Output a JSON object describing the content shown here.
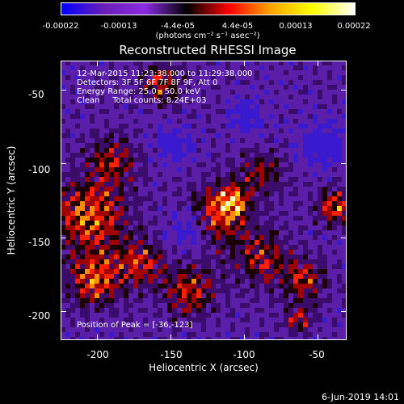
{
  "colorbar": {
    "ticks": [
      "-0.00022",
      "-0.00013",
      "-4.4e-05",
      "4.4e-05",
      "0.00013",
      "0.00022"
    ],
    "unit": "(photons cm⁻² s⁻¹ asec⁻²)",
    "colors": [
      "#0000ff",
      "#6a1eb5",
      "#8a2be2",
      "#000000",
      "#ff0000",
      "#ffa500",
      "#ffff00",
      "#ffffff"
    ]
  },
  "chart_data": {
    "type": "heatmap",
    "title": "Reconstructed RHESSI Image",
    "xlabel": "Heliocentric X (arcsec)",
    "ylabel": "Heliocentric Y (arcsec)",
    "xlim": [
      -225,
      -30
    ],
    "ylim": [
      -220,
      -30
    ],
    "xticks": [
      -200,
      -150,
      -100,
      -50
    ],
    "yticks": [
      -50,
      -100,
      -150,
      -200
    ],
    "clim": [
      -0.00022,
      0.00022
    ],
    "peak": [
      -36,
      -123
    ],
    "grid": false
  },
  "info": {
    "line1": "12-Mar-2015 11:23:38.000 to 11:29:38.000",
    "line2": "Detectors: 3F 5F 6F 7F 8F 9F, Att 0",
    "line3": "Energy Range: 25.0 - 50.0 keV",
    "line4": "Clean     Total counts: 8.24E+03",
    "peak": "Position of Peak = [-36,-123]"
  },
  "footer": {
    "date": "6-Jun-2019 14:01"
  }
}
